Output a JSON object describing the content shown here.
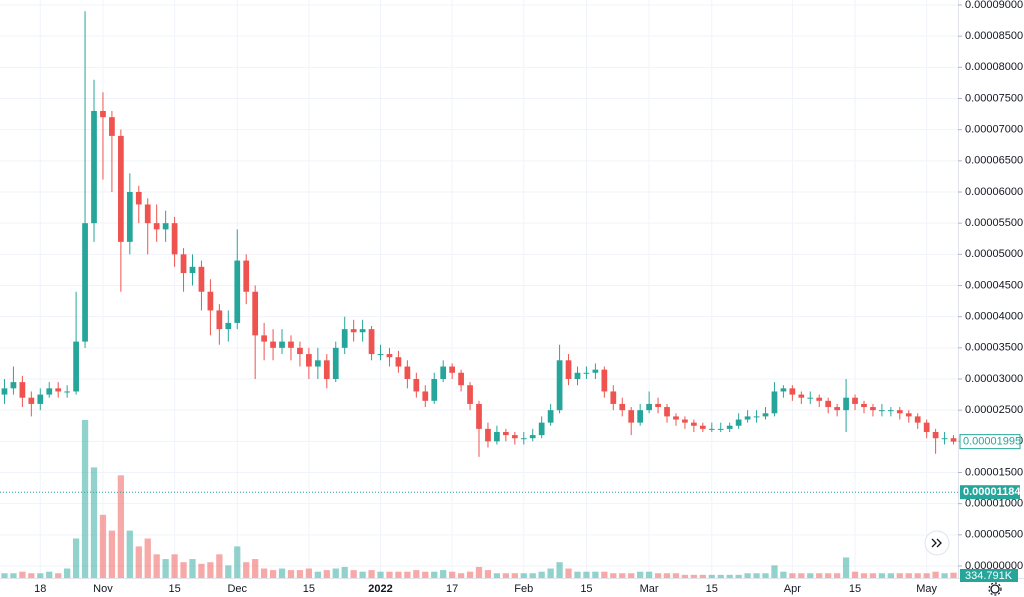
{
  "chart_data": {
    "type": "candlestick",
    "categories": [
      null,
      null,
      null,
      null,
      "18",
      null,
      null,
      null,
      null,
      null,
      null,
      "Nov",
      null,
      null,
      null,
      null,
      null,
      null,
      null,
      "15",
      null,
      null,
      null,
      null,
      null,
      null,
      "Dec",
      null,
      null,
      null,
      null,
      null,
      null,
      null,
      "15",
      null,
      null,
      null,
      null,
      null,
      null,
      null,
      "2022",
      null,
      null,
      null,
      null,
      null,
      null,
      null,
      "17",
      null,
      null,
      null,
      null,
      null,
      null,
      null,
      "Feb",
      null,
      null,
      null,
      null,
      null,
      null,
      "15",
      null,
      null,
      null,
      null,
      null,
      null,
      "Mar",
      null,
      null,
      null,
      null,
      null,
      null,
      "15",
      null,
      null,
      null,
      null,
      null,
      null,
      null,
      null,
      "Apr",
      null,
      null,
      null,
      null,
      null,
      null,
      "15",
      null,
      null,
      null,
      null,
      null,
      null,
      null,
      "May",
      null,
      null,
      null
    ],
    "open": [
      2.75e-05,
      2.85e-05,
      2.95e-05,
      2.7e-05,
      2.6e-05,
      2.75e-05,
      2.85e-05,
      2.8e-05,
      2.8e-05,
      3.6e-05,
      5.5e-05,
      7.3e-05,
      7.2e-05,
      6.9e-05,
      5.2e-05,
      6e-05,
      5.8e-05,
      5.5e-05,
      5.4e-05,
      5.5e-05,
      5e-05,
      4.7e-05,
      4.8e-05,
      4.4e-05,
      4.1e-05,
      3.8e-05,
      3.9e-05,
      4.9e-05,
      4.4e-05,
      3.7e-05,
      3.6e-05,
      3.5e-05,
      3.6e-05,
      3.5e-05,
      3.4e-05,
      3.2e-05,
      3.3e-05,
      3e-05,
      3.5e-05,
      3.8e-05,
      3.75e-05,
      3.8e-05,
      3.4e-05,
      3.4e-05,
      3.35e-05,
      3.2e-05,
      3e-05,
      2.8e-05,
      2.65e-05,
      3e-05,
      3.2e-05,
      3.1e-05,
      2.9e-05,
      2.6e-05,
      2.2e-05,
      2e-05,
      2.15e-05,
      2.1e-05,
      2.05e-05,
      2.05e-05,
      2.1e-05,
      2.3e-05,
      2.5e-05,
      3.3e-05,
      3e-05,
      3.1e-05,
      3.1e-05,
      3.15e-05,
      2.8e-05,
      2.6e-05,
      2.5e-05,
      2.3e-05,
      2.5e-05,
      2.6e-05,
      2.55e-05,
      2.4e-05,
      2.35e-05,
      2.3e-05,
      2.25e-05,
      2.2e-05,
      2.2e-05,
      2.2e-05,
      2.25e-05,
      2.35e-05,
      2.4e-05,
      2.4e-05,
      2.45e-05,
      2.8e-05,
      2.85e-05,
      2.75e-05,
      2.7e-05,
      2.7e-05,
      2.65e-05,
      2.55e-05,
      2.5e-05,
      2.7e-05,
      2.6e-05,
      2.55e-05,
      2.5e-05,
      2.5e-05,
      2.5e-05,
      2.45e-05,
      2.4e-05,
      2.3e-05,
      2.15e-05,
      2.05e-05,
      2.05e-05
    ],
    "high": [
      3e-05,
      3.2e-05,
      3.05e-05,
      2.8e-05,
      2.85e-05,
      2.95e-05,
      2.95e-05,
      2.9e-05,
      4.4e-05,
      8.9e-05,
      7.8e-05,
      7.6e-05,
      7.3e-05,
      7e-05,
      6.3e-05,
      6.1e-05,
      5.9e-05,
      5.8e-05,
      5.7e-05,
      5.6e-05,
      5.1e-05,
      5e-05,
      4.9e-05,
      4.6e-05,
      4.2e-05,
      4.1e-05,
      5.4e-05,
      5e-05,
      4.5e-05,
      3.9e-05,
      3.8e-05,
      3.8e-05,
      3.7e-05,
      3.6e-05,
      3.5e-05,
      3.5e-05,
      3.4e-05,
      3.6e-05,
      4e-05,
      3.95e-05,
      3.95e-05,
      3.85e-05,
      3.55e-05,
      3.5e-05,
      3.45e-05,
      3.3e-05,
      3.1e-05,
      2.9e-05,
      3.1e-05,
      3.3e-05,
      3.25e-05,
      3.15e-05,
      2.95e-05,
      2.65e-05,
      2.3e-05,
      2.25e-05,
      2.2e-05,
      2.15e-05,
      2.15e-05,
      2.2e-05,
      2.4e-05,
      2.6e-05,
      3.55e-05,
      3.4e-05,
      3.2e-05,
      3.2e-05,
      3.25e-05,
      3.2e-05,
      2.9e-05,
      2.7e-05,
      2.55e-05,
      2.6e-05,
      2.8e-05,
      2.7e-05,
      2.6e-05,
      2.45e-05,
      2.4e-05,
      2.35e-05,
      2.3e-05,
      2.3e-05,
      2.3e-05,
      2.3e-05,
      2.45e-05,
      2.5e-05,
      2.5e-05,
      2.55e-05,
      2.95e-05,
      2.9e-05,
      2.9e-05,
      2.8e-05,
      2.8e-05,
      2.75e-05,
      2.7e-05,
      2.6e-05,
      3e-05,
      2.75e-05,
      2.65e-05,
      2.6e-05,
      2.6e-05,
      2.55e-05,
      2.55e-05,
      2.5e-05,
      2.45e-05,
      2.35e-05,
      2.2e-05,
      2.15e-05,
      2.1e-05
    ],
    "low": [
      2.6e-05,
      2.75e-05,
      2.55e-05,
      2.4e-05,
      2.5e-05,
      2.7e-05,
      2.7e-05,
      2.7e-05,
      2.75e-05,
      3.5e-05,
      5.2e-05,
      6.2e-05,
      6e-05,
      4.4e-05,
      5e-05,
      5.5e-05,
      5e-05,
      5.2e-05,
      5.2e-05,
      4.8e-05,
      4.4e-05,
      4.5e-05,
      4.1e-05,
      3.7e-05,
      3.55e-05,
      3.6e-05,
      3.8e-05,
      4.2e-05,
      3e-05,
      3.3e-05,
      3.3e-05,
      3.4e-05,
      3.3e-05,
      3.2e-05,
      3e-05,
      3e-05,
      2.85e-05,
      2.95e-05,
      3.4e-05,
      3.6e-05,
      3.6e-05,
      3.3e-05,
      3.3e-05,
      3.2e-05,
      3.1e-05,
      2.85e-05,
      2.7e-05,
      2.55e-05,
      2.6e-05,
      2.95e-05,
      3e-05,
      2.8e-05,
      2.5e-05,
      1.75e-05,
      1.9e-05,
      1.95e-05,
      2e-05,
      1.95e-05,
      1.95e-05,
      2e-05,
      2.05e-05,
      2.25e-05,
      2.45e-05,
      2.9e-05,
      2.9e-05,
      3e-05,
      3e-05,
      2.7e-05,
      2.5e-05,
      2.4e-05,
      2.1e-05,
      2.25e-05,
      2.45e-05,
      2.45e-05,
      2.3e-05,
      2.25e-05,
      2.2e-05,
      2.15e-05,
      2.15e-05,
      2.15e-05,
      2.15e-05,
      2.15e-05,
      2.2e-05,
      2.3e-05,
      2.3e-05,
      2.35e-05,
      2.4e-05,
      2.7e-05,
      2.65e-05,
      2.6e-05,
      2.6e-05,
      2.55e-05,
      2.45e-05,
      2.4e-05,
      2.15e-05,
      2.5e-05,
      2.45e-05,
      2.4e-05,
      2.4e-05,
      2.4e-05,
      2.35e-05,
      2.3e-05,
      2.2e-05,
      2.05e-05,
      1.8e-05,
      1.95e-05,
      1.95e-05
    ],
    "close": [
      2.85e-05,
      2.95e-05,
      2.7e-05,
      2.6e-05,
      2.75e-05,
      2.85e-05,
      2.8e-05,
      2.8e-05,
      3.6e-05,
      5.5e-05,
      7.3e-05,
      7.2e-05,
      6.9e-05,
      5.2e-05,
      6e-05,
      5.8e-05,
      5.5e-05,
      5.4e-05,
      5.5e-05,
      5e-05,
      4.7e-05,
      4.8e-05,
      4.4e-05,
      4.1e-05,
      3.8e-05,
      3.9e-05,
      4.9e-05,
      4.4e-05,
      3.7e-05,
      3.6e-05,
      3.5e-05,
      3.6e-05,
      3.5e-05,
      3.4e-05,
      3.2e-05,
      3.3e-05,
      3e-05,
      3.5e-05,
      3.8e-05,
      3.75e-05,
      3.8e-05,
      3.4e-05,
      3.4e-05,
      3.35e-05,
      3.2e-05,
      3e-05,
      2.8e-05,
      2.65e-05,
      3e-05,
      3.2e-05,
      3.1e-05,
      2.9e-05,
      2.6e-05,
      2.2e-05,
      2e-05,
      2.15e-05,
      2.1e-05,
      2.05e-05,
      2.05e-05,
      2.1e-05,
      2.3e-05,
      2.5e-05,
      3.3e-05,
      3e-05,
      3.1e-05,
      3.1e-05,
      3.15e-05,
      2.8e-05,
      2.6e-05,
      2.5e-05,
      2.3e-05,
      2.5e-05,
      2.6e-05,
      2.55e-05,
      2.4e-05,
      2.35e-05,
      2.3e-05,
      2.25e-05,
      2.2e-05,
      2.2e-05,
      2.2e-05,
      2.25e-05,
      2.35e-05,
      2.4e-05,
      2.4e-05,
      2.45e-05,
      2.8e-05,
      2.85e-05,
      2.75e-05,
      2.7e-05,
      2.7e-05,
      2.65e-05,
      2.55e-05,
      2.5e-05,
      2.7e-05,
      2.6e-05,
      2.55e-05,
      2.5e-05,
      2.5e-05,
      2.5e-05,
      2.45e-05,
      2.4e-05,
      2.3e-05,
      2.15e-05,
      2.05e-05,
      2.05e-05,
      1.995e-05
    ],
    "last_price_label": "0.00001995",
    "volume": {
      "values": [
        300000,
        300000,
        400000,
        300000,
        300000,
        400000,
        300000,
        600000,
        2500000,
        10000000,
        7000000,
        4000000,
        3000000,
        6500000,
        3000000,
        2000000,
        2500000,
        1500000,
        1200000,
        1500000,
        1000000,
        1200000,
        900000,
        1000000,
        1500000,
        800000,
        2000000,
        1000000,
        1200000,
        600000,
        500000,
        600000,
        500000,
        500000,
        600000,
        400000,
        500000,
        600000,
        700000,
        500000,
        400000,
        500000,
        400000,
        400000,
        400000,
        400000,
        500000,
        400000,
        400000,
        500000,
        400000,
        300000,
        400000,
        700000,
        500000,
        300000,
        300000,
        300000,
        300000,
        300000,
        400000,
        600000,
        1000000,
        600000,
        400000,
        400000,
        400000,
        400000,
        300000,
        300000,
        300000,
        400000,
        400000,
        300000,
        300000,
        300000,
        200000,
        200000,
        200000,
        200000,
        200000,
        200000,
        200000,
        300000,
        300000,
        300000,
        800000,
        400000,
        300000,
        300000,
        300000,
        300000,
        300000,
        300000,
        1300000,
        400000,
        300000,
        300000,
        300000,
        300000,
        300000,
        300000,
        300000,
        300000,
        400000,
        300000,
        334791
      ],
      "last_value_label": "334.791K"
    },
    "y2lim": [
      0,
      10000000
    ],
    "crosshair": {
      "value": 1.184e-05,
      "label": "0.00001184"
    },
    "up_color": "#26a69a",
    "down_color": "#ef5350",
    "ylim": [
      0,
      9e-05
    ],
    "yticks": [
      {
        "value": 0,
        "label": "0.00000000"
      },
      {
        "value": 5e-06,
        "label": "0.00000500"
      },
      {
        "value": 1e-05,
        "label": "0.00001000"
      },
      {
        "value": 1.5e-05,
        "label": "0.00001500"
      },
      {
        "value": 2e-05,
        "label": "0.00002000"
      },
      {
        "value": 2.5e-05,
        "label": "0.00002500"
      },
      {
        "value": 3e-05,
        "label": "0.00003000"
      },
      {
        "value": 3.5e-05,
        "label": "0.00003500"
      },
      {
        "value": 4e-05,
        "label": "0.00004000"
      },
      {
        "value": 4.5e-05,
        "label": "0.00004500"
      },
      {
        "value": 5e-05,
        "label": "0.00005000"
      },
      {
        "value": 5.5e-05,
        "label": "0.00005500"
      },
      {
        "value": 6e-05,
        "label": "0.00006000"
      },
      {
        "value": 6.5e-05,
        "label": "0.00006500"
      },
      {
        "value": 7e-05,
        "label": "0.00007000"
      },
      {
        "value": 7.5e-05,
        "label": "0.00007500"
      },
      {
        "value": 8e-05,
        "label": "0.00008000"
      },
      {
        "value": 8.5e-05,
        "label": "0.00008500"
      },
      {
        "value": 9e-05,
        "label": "0.00009000"
      }
    ],
    "grid": true
  }
}
